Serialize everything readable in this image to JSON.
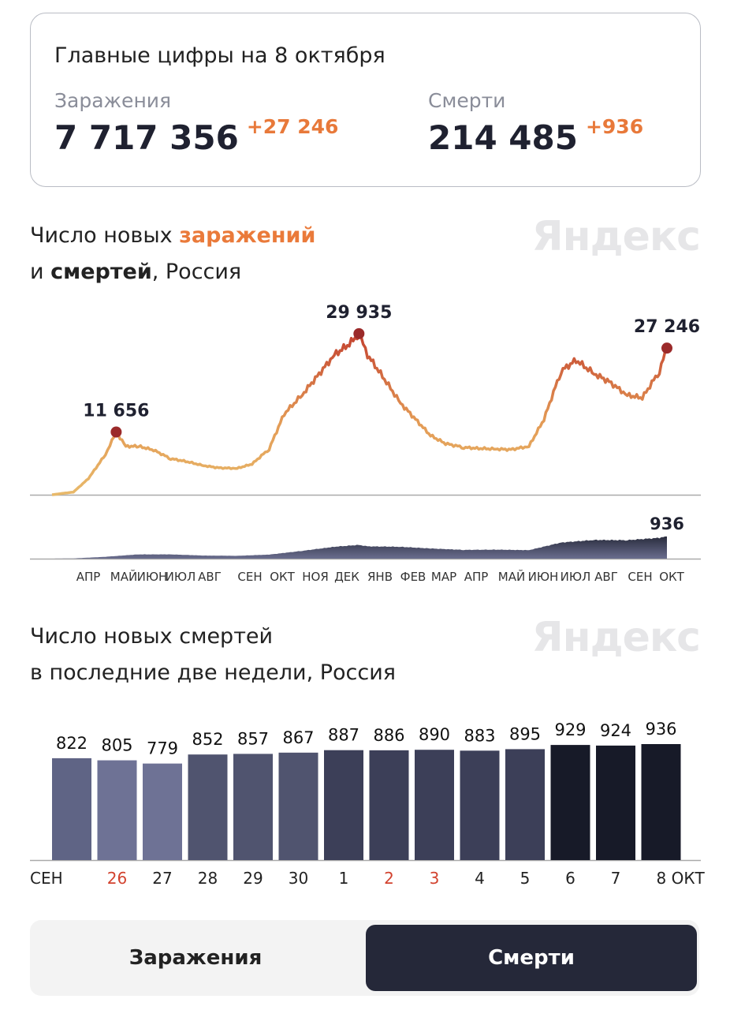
{
  "summary": {
    "title": "Главные цифры на 8 октября",
    "infections": {
      "label": "Заражения",
      "value": "7 717 356",
      "delta": "+27 246"
    },
    "deaths": {
      "label": "Смерти",
      "value": "214 485",
      "delta": "+936"
    }
  },
  "logo": "Яндекс",
  "chart1": {
    "title_pre": "Число новых ",
    "title_bold_orange": "заражений",
    "title_line2_pre": "и ",
    "title_bold": "смертей",
    "title_post": ", Россия"
  },
  "chart2": {
    "title_line1": "Число новых смертей",
    "title_line2": "в последние две недели, Россия"
  },
  "tabs": {
    "infections": "Заражения",
    "deaths": "Смерти",
    "active": "deaths"
  },
  "colors": {
    "accent": "#ea7a3a",
    "line_low": "#e8b96a",
    "line_high": "#c3402f",
    "peak_dot": "#9b2a2a",
    "area": "#4a4d6b",
    "bar_dark": "#171a28"
  },
  "chart_data": [
    {
      "type": "line",
      "name": "new infections",
      "x_start": "2020-03-12",
      "x_end": "2021-10-08",
      "points": [
        [
          "2020-03-12",
          0
        ],
        [
          "2020-04-01",
          500
        ],
        [
          "2020-04-15",
          3000
        ],
        [
          "2020-05-01",
          7500
        ],
        [
          "2020-05-11",
          11656
        ],
        [
          "2020-05-20",
          9000
        ],
        [
          "2020-06-01",
          9000
        ],
        [
          "2020-06-15",
          8300
        ],
        [
          "2020-07-01",
          6700
        ],
        [
          "2020-07-15",
          6200
        ],
        [
          "2020-08-01",
          5400
        ],
        [
          "2020-08-15",
          5000
        ],
        [
          "2020-09-01",
          4900
        ],
        [
          "2020-09-15",
          5700
        ],
        [
          "2020-10-01",
          8500
        ],
        [
          "2020-10-15",
          15000
        ],
        [
          "2020-11-01",
          18600
        ],
        [
          "2020-11-15",
          22000
        ],
        [
          "2020-12-01",
          26000
        ],
        [
          "2020-12-15",
          28000
        ],
        [
          "2020-12-24",
          29935
        ],
        [
          "2021-01-01",
          26000
        ],
        [
          "2021-01-15",
          22000
        ],
        [
          "2021-02-01",
          17000
        ],
        [
          "2021-02-15",
          14000
        ],
        [
          "2021-03-01",
          11000
        ],
        [
          "2021-03-15",
          9500
        ],
        [
          "2021-04-01",
          8800
        ],
        [
          "2021-04-15",
          8600
        ],
        [
          "2021-05-01",
          8500
        ],
        [
          "2021-05-15",
          8400
        ],
        [
          "2021-06-01",
          9000
        ],
        [
          "2021-06-15",
          14000
        ],
        [
          "2021-07-01",
          23000
        ],
        [
          "2021-07-15",
          25000
        ],
        [
          "2021-08-01",
          22500
        ],
        [
          "2021-08-15",
          21000
        ],
        [
          "2021-09-01",
          18500
        ],
        [
          "2021-09-15",
          18000
        ],
        [
          "2021-10-01",
          23000
        ],
        [
          "2021-10-08",
          27246
        ]
      ],
      "annotations": [
        {
          "date": "2020-05-11",
          "label": "11 656"
        },
        {
          "date": "2020-12-24",
          "label": "29 935"
        },
        {
          "date": "2021-10-08",
          "label": "27 246"
        }
      ]
    },
    {
      "type": "area",
      "name": "new deaths",
      "points": [
        [
          "2020-03-12",
          0
        ],
        [
          "2020-04-01",
          10
        ],
        [
          "2020-05-01",
          80
        ],
        [
          "2020-06-01",
          180
        ],
        [
          "2020-07-01",
          180
        ],
        [
          "2020-08-01",
          130
        ],
        [
          "2020-09-01",
          120
        ],
        [
          "2020-10-01",
          170
        ],
        [
          "2020-11-01",
          330
        ],
        [
          "2020-12-01",
          500
        ],
        [
          "2020-12-24",
          580
        ],
        [
          "2021-01-01",
          520
        ],
        [
          "2021-02-01",
          500
        ],
        [
          "2021-03-01",
          430
        ],
        [
          "2021-04-01",
          370
        ],
        [
          "2021-05-01",
          380
        ],
        [
          "2021-06-01",
          360
        ],
        [
          "2021-07-01",
          680
        ],
        [
          "2021-08-01",
          790
        ],
        [
          "2021-09-01",
          780
        ],
        [
          "2021-10-01",
          880
        ],
        [
          "2021-10-08",
          936
        ]
      ],
      "annotation": "936",
      "month_labels": [
        "АПР",
        "МАЙ",
        "ИЮН",
        "ИЮЛ",
        "АВГ",
        "СЕН",
        "ОКТ",
        "НОЯ",
        "ДЕК",
        "ЯНВ",
        "ФЕВ",
        "МАР",
        "АПР",
        "МАЙ",
        "ИЮН",
        "ИЮЛ",
        "АВГ",
        "СЕН",
        "ОКТ"
      ]
    },
    {
      "type": "bar",
      "categories": [
        "СЕН",
        "26",
        "27",
        "28",
        "29",
        "30",
        "1",
        "2",
        "3",
        "4",
        "5",
        "6",
        "7",
        "8 ОКТ"
      ],
      "weekend": [
        false,
        true,
        false,
        false,
        false,
        false,
        false,
        true,
        true,
        false,
        false,
        false,
        false,
        false
      ],
      "values": [
        822,
        805,
        779,
        852,
        857,
        867,
        887,
        886,
        890,
        883,
        895,
        929,
        924,
        936
      ],
      "value_labels": [
        "822",
        "805",
        "779",
        "852",
        "857",
        "867",
        "887",
        "886",
        "890",
        "883",
        "895",
        "929",
        "924",
        "936"
      ],
      "colors": [
        "#5f6485",
        "#6e7295",
        "#6e7295",
        "#50546f",
        "#50546f",
        "#50546f",
        "#3c3f58",
        "#3c3f58",
        "#3c3f58",
        "#3c3f58",
        "#3c3f58",
        "#171a28",
        "#171a28",
        "#171a28"
      ],
      "ylim": [
        0,
        936
      ]
    }
  ]
}
